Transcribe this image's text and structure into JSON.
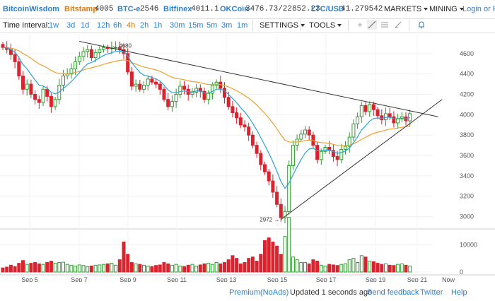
{
  "header": {
    "brand": "BitcoinWisdom",
    "markets": [
      {
        "name": "Bitstamp",
        "price": "4005",
        "color": "#e07a10"
      },
      {
        "name": "BTC-e",
        "price": "2546",
        "color": "#2a7fd4"
      },
      {
        "name": "Bitfinex",
        "price": "4011.1",
        "color": "#2a7fd4"
      },
      {
        "name": "OKCoin",
        "price": "3476.73/22852.23",
        "color": "#2a7fd4"
      },
      {
        "name": "LTC/USD",
        "price": "41.279542",
        "color": "#2a7fd4"
      }
    ],
    "menu_markets": "MARKETS",
    "menu_mining": "MINING",
    "login": "Login or Re"
  },
  "toolbar": {
    "time_interval_label": "Time Interval:",
    "intervals": [
      "1w",
      "3d",
      "1d",
      "12h",
      "6h",
      "4h",
      "2h",
      "1h",
      "30m",
      "15m",
      "5m",
      "3m",
      "1m"
    ],
    "active_interval": "4h",
    "settings": "SETTINGS",
    "tools": "TOOLS"
  },
  "chart_data": {
    "type": "candlestick",
    "price_axis": {
      "ticks": [
        3000,
        3200,
        3400,
        3600,
        3800,
        4000,
        4200,
        4400,
        4600
      ],
      "range": [
        2900,
        4800
      ]
    },
    "volume_axis": {
      "ticks": [
        "10000",
        "0"
      ],
      "range": [
        0,
        15000
      ]
    },
    "x_labels": [
      "Sep 5",
      "Sep 7",
      "Sep 9",
      "Sep 11",
      "Sep 13",
      "Sep 15",
      "Sep 17",
      "Sep 19",
      "Sep 21",
      "Now"
    ],
    "annotations": [
      {
        "text": "4680",
        "value": 4680
      },
      {
        "text": "2972",
        "value": 2972
      }
    ],
    "colors": {
      "up": "#2e9e2e",
      "down": "#d9232e",
      "ma_fast": "#29a3d9",
      "ma_slow": "#f0a030",
      "trend": "#333333"
    },
    "closes": [
      4660,
      4640,
      4590,
      4520,
      4380,
      4250,
      4300,
      4200,
      4150,
      4120,
      4250,
      4180,
      4080,
      4150,
      4290,
      4380,
      4400,
      4450,
      4520,
      4570,
      4620,
      4640,
      4560,
      4610,
      4640,
      4660,
      4650,
      4655,
      4660,
      4640,
      4600,
      4420,
      4280,
      4300,
      4250,
      4290,
      4350,
      4320,
      4300,
      4250,
      4150,
      4080,
      4130,
      4200,
      4280,
      4250,
      4200,
      4220,
      4260,
      4230,
      4150,
      4210,
      4290,
      4320,
      4260,
      4170,
      4080,
      4020,
      3970,
      3900,
      3880,
      3800,
      3700,
      3620,
      3510,
      3440,
      3350,
      3240,
      3120,
      2990,
      3050,
      3500,
      3700,
      3760,
      3810,
      3850,
      3800,
      3700,
      3560,
      3640,
      3680,
      3650,
      3590,
      3560,
      3660,
      3690,
      3780,
      3910,
      3980,
      4090,
      4030,
      4100,
      4050,
      3990,
      3950,
      4010,
      3980,
      3920,
      3960,
      3980,
      3940,
      4010
    ],
    "volumes": [
      1500,
      1800,
      2500,
      2000,
      3200,
      4200,
      2800,
      3200,
      3500,
      3000,
      2800,
      3500,
      4000,
      3200,
      3500,
      3600,
      2800,
      2500,
      2200,
      2600,
      2400,
      2000,
      2200,
      2500,
      2600,
      2800,
      3000,
      3200,
      2500,
      4500,
      11000,
      6500,
      3500,
      3000,
      2800,
      2500,
      2200,
      2000,
      2400,
      2600,
      3500,
      3000,
      2500,
      2800,
      2200,
      2000,
      2500,
      2800,
      2200,
      2600,
      3000,
      3200,
      2800,
      3500,
      3000,
      3500,
      4500,
      6000,
      5000,
      3000,
      3500,
      5000,
      5500,
      4000,
      6500,
      11500,
      12500,
      11000,
      9500,
      6500,
      13000,
      20000,
      5500,
      4500,
      3500,
      3500,
      3000,
      4500,
      4000,
      2500,
      2200,
      2800,
      2600,
      2400,
      2800,
      3000,
      4500,
      5000,
      3500,
      6000,
      5500,
      4000,
      3800,
      3200,
      2800,
      3000,
      2500,
      2400,
      2800,
      3000,
      2500,
      2200
    ]
  },
  "footer": {
    "premium": "Premium(NoAds)",
    "updated": "Updated 1 seconds ago",
    "feedback": "Send feedback",
    "twitter": "Twitter",
    "help": "Help"
  }
}
